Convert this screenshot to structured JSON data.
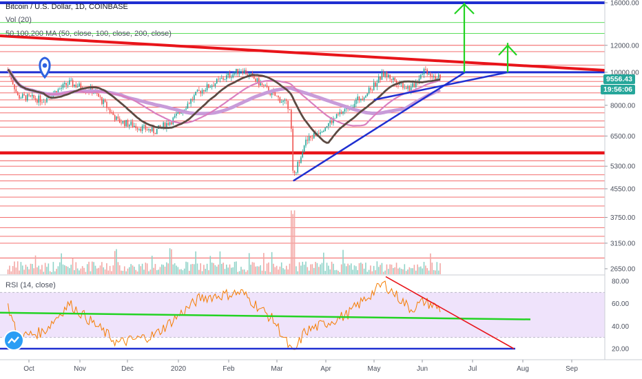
{
  "title": "Bitcoin / U.S. Dollar, 1D, COINBASE",
  "indicators": {
    "volume": "Vol (20)",
    "ma": "50,100,200 MA (50, close, 100, close, 200, close)",
    "rsi": "RSI (14, close)"
  },
  "last_price": {
    "value": "9556.43",
    "countdown": "19:56:06",
    "color": "#26a69a"
  },
  "colors": {
    "horizontal_lines": "#ef3b3b",
    "blue_line": "#1f2fd1",
    "green_line": "#22d322",
    "candle_up": "#26a69a",
    "candle_down": "#ef5350",
    "ma50": "#d97fbf",
    "ma100": "#6d5a52",
    "rsi_line": "#f57c00",
    "rsi_band": "#efe3fb"
  },
  "chart_data": {
    "type": "candlestick",
    "price_axis": {
      "ticks": [
        16000,
        12000,
        10000,
        8000,
        6500,
        5300,
        4550,
        3750,
        3150,
        2650
      ],
      "tick_labels": [
        "16000.00",
        "12000.00",
        "10000.00",
        "8000.00",
        "6500.00",
        "5300.00",
        "4550.00",
        "3750.00",
        "3150.00",
        "2650.00"
      ]
    },
    "time_axis": {
      "labels": [
        "Oct",
        "Nov",
        "Dec",
        "2020",
        "Feb",
        "Mar",
        "Apr",
        "May",
        "Jun",
        "Jul",
        "Aug",
        "Sep"
      ]
    },
    "rsi_axis": {
      "ticks": [
        80,
        60,
        40,
        20
      ],
      "tick_labels": [
        "80.00",
        "60.00",
        "40.00",
        "20.00"
      ],
      "band": [
        30,
        70
      ]
    },
    "price_path": [
      [
        "2019-09-18",
        10200
      ],
      [
        "2019-09-24",
        8500
      ],
      [
        "2019-10-10",
        8300
      ],
      [
        "2019-10-26",
        9300
      ],
      [
        "2019-11-10",
        8800
      ],
      [
        "2019-11-25",
        7200
      ],
      [
        "2019-12-18",
        6700
      ],
      [
        "2019-12-30",
        7300
      ],
      [
        "2020-01-15",
        8800
      ],
      [
        "2020-02-10",
        10200
      ],
      [
        "2020-02-28",
        8700
      ],
      [
        "2020-03-11",
        7900
      ],
      [
        "2020-03-13",
        4800
      ],
      [
        "2020-03-20",
        6200
      ],
      [
        "2020-04-06",
        7200
      ],
      [
        "2020-04-29",
        8800
      ],
      [
        "2020-05-08",
        9900
      ],
      [
        "2020-05-25",
        8900
      ],
      [
        "2020-06-02",
        10200
      ],
      [
        "2020-06-13",
        9500
      ]
    ],
    "volume_spike_date": "2020-03-13",
    "rsi_path": [
      [
        "2019-09-18",
        58
      ],
      [
        "2019-09-24",
        30
      ],
      [
        "2019-10-10",
        35
      ],
      [
        "2019-10-26",
        60
      ],
      [
        "2019-11-25",
        25
      ],
      [
        "2019-12-18",
        32
      ],
      [
        "2020-01-15",
        65
      ],
      [
        "2020-02-10",
        70
      ],
      [
        "2020-03-01",
        45
      ],
      [
        "2020-03-13",
        15
      ],
      [
        "2020-03-20",
        35
      ],
      [
        "2020-04-15",
        50
      ],
      [
        "2020-05-08",
        78
      ],
      [
        "2020-05-25",
        55
      ],
      [
        "2020-06-02",
        62
      ],
      [
        "2020-06-13",
        55
      ]
    ]
  },
  "annotations": {
    "horizontal_levels": [
      16000,
      14000,
      13000,
      12000,
      11500,
      10500,
      10000,
      9700,
      9400,
      9100,
      8700,
      8300,
      7900,
      7600,
      7200,
      6900,
      6500,
      5800,
      5500,
      5300,
      5000,
      4800,
      4550,
      4300,
      4050,
      3750,
      3500,
      3300,
      3150,
      2850
    ],
    "thick_red_level": 5800,
    "blue_level": 10000
  }
}
